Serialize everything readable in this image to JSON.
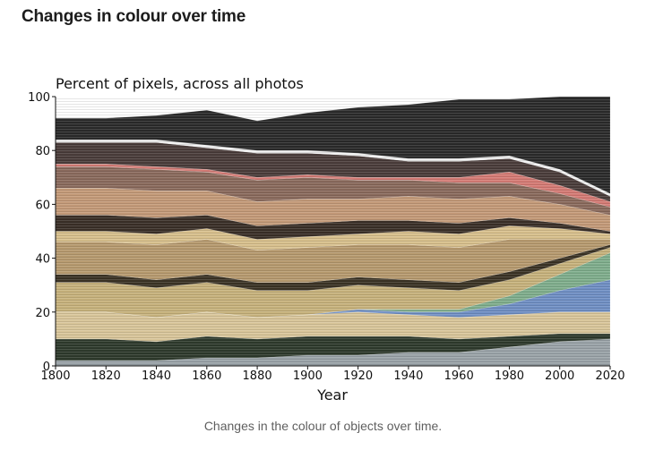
{
  "page": {
    "heading": "Changes in colour over time",
    "caption": "Changes in the colour of objects over time."
  },
  "chart_data": {
    "type": "area",
    "title": "Percent of pixels, across all photos",
    "xlabel": "Year",
    "ylabel": "",
    "xlim": [
      1800,
      2020
    ],
    "ylim": [
      0,
      100
    ],
    "x": [
      1800,
      1820,
      1840,
      1860,
      1880,
      1900,
      1920,
      1940,
      1960,
      1980,
      2000,
      2020
    ],
    "xticks": [
      "1800",
      "1820",
      "1840",
      "1860",
      "1880",
      "1900",
      "1920",
      "1940",
      "1960",
      "1980",
      "2000",
      "2020"
    ],
    "yticks": [
      "0",
      "20",
      "40",
      "60",
      "80",
      "100"
    ],
    "grid": false,
    "legend": "none",
    "series": [
      {
        "color": "#9aa3a8",
        "values": [
          2,
          2,
          2,
          3,
          3,
          4,
          4,
          5,
          5,
          7,
          9,
          10
        ]
      },
      {
        "color": "#2e3a2c",
        "values": [
          8,
          8,
          7,
          8,
          7,
          7,
          7,
          6,
          5,
          4,
          3,
          2
        ]
      },
      {
        "color": "#d9c69a",
        "values": [
          10,
          10,
          9,
          9,
          8,
          8,
          9,
          8,
          8,
          8,
          8,
          8
        ]
      },
      {
        "color": "#6f8fc4",
        "values": [
          0,
          0,
          0,
          0,
          0,
          0,
          1,
          1,
          2,
          4,
          8,
          12
        ]
      },
      {
        "color": "#7fae8c",
        "values": [
          0,
          0,
          0,
          0,
          0,
          0,
          0,
          1,
          1,
          3,
          6,
          10
        ]
      },
      {
        "color": "#c7b27c",
        "values": [
          11,
          11,
          11,
          11,
          10,
          9,
          9,
          8,
          7,
          6,
          4,
          2
        ]
      },
      {
        "color": "#3b3325",
        "values": [
          3,
          3,
          3,
          3,
          3,
          3,
          3,
          3,
          3,
          3,
          2,
          1
        ]
      },
      {
        "color": "#b79a6e",
        "values": [
          12,
          12,
          13,
          13,
          12,
          13,
          12,
          13,
          13,
          12,
          7,
          2
        ]
      },
      {
        "color": "#d8c08c",
        "values": [
          4,
          4,
          4,
          4,
          4,
          4,
          4,
          5,
          5,
          5,
          4,
          2
        ]
      },
      {
        "color": "#3a2f27",
        "values": [
          6,
          6,
          6,
          5,
          5,
          5,
          5,
          4,
          4,
          3,
          2,
          1
        ]
      },
      {
        "color": "#c49a78",
        "values": [
          10,
          10,
          10,
          9,
          9,
          9,
          8,
          9,
          9,
          8,
          7,
          6
        ]
      },
      {
        "color": "#8a6a5c",
        "values": [
          8,
          8,
          8,
          7,
          8,
          8,
          7,
          6,
          6,
          5,
          4,
          3
        ]
      },
      {
        "color": "#d57a74",
        "values": [
          1,
          1,
          1,
          1,
          1,
          1,
          1,
          1,
          2,
          4,
          3,
          2
        ]
      },
      {
        "color": "#4a3c3a",
        "values": [
          8,
          8,
          9,
          8,
          9,
          8,
          8,
          6,
          6,
          5,
          5,
          2
        ]
      },
      {
        "color": "#f2f2f2",
        "values": [
          1,
          1,
          1,
          1,
          1,
          1,
          1,
          1,
          1,
          1,
          1,
          1
        ]
      },
      {
        "color": "#2a2a2a",
        "values": [
          8,
          8,
          9,
          13,
          11,
          14,
          17,
          20,
          22,
          21,
          27,
          36
        ]
      }
    ]
  }
}
